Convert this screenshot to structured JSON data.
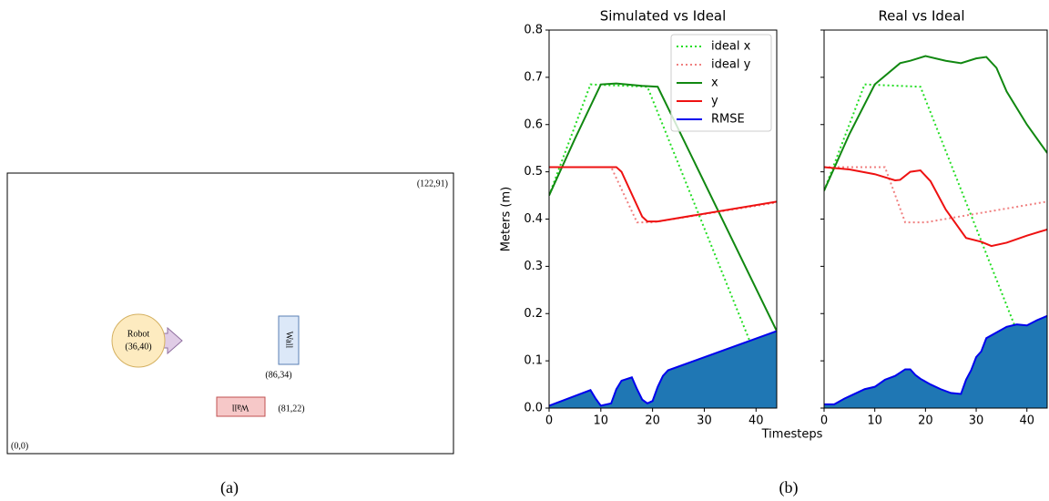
{
  "diagram": {
    "corner_top_right": "(122,91)",
    "corner_bottom_left": "(0,0)",
    "robot": {
      "label": "Robot",
      "position": "(36,40)"
    },
    "wall_vertical": {
      "label": "Wall",
      "position": "(86,34)"
    },
    "wall_horizontal": {
      "label": "Wall",
      "position": "(81,22)"
    },
    "caption": "(a)"
  },
  "caption_b": "(b)",
  "chart_data": [
    {
      "type": "line",
      "title": "Simulated vs Ideal",
      "ylabel": "Meters (m)",
      "xlabel": "Timesteps",
      "xlim": [
        0,
        44
      ],
      "xticks": [
        0,
        10,
        20,
        30,
        40
      ],
      "ylim": [
        0,
        0.8
      ],
      "yticks": [
        {
          "value": 0,
          "label": "0.0"
        },
        0.1,
        0.2,
        0.3,
        0.4,
        0.5,
        0.6,
        0.7,
        0.8
      ],
      "legend": "upper right",
      "series": [
        {
          "name": "ideal x",
          "color": "#22dd22",
          "style": "dotted",
          "x": [
            0,
            8,
            19,
            44
          ],
          "values": [
            0.45,
            0.685,
            0.68,
            0.0
          ]
        },
        {
          "name": "ideal y",
          "color": "#f08080",
          "style": "dotted",
          "x": [
            0,
            12,
            17,
            20,
            44
          ],
          "values": [
            0.51,
            0.51,
            0.393,
            0.393,
            0.435
          ]
        },
        {
          "name": "x",
          "color": "#118811",
          "style": "solid",
          "x": [
            0,
            5,
            10,
            13,
            18,
            21,
            44
          ],
          "values": [
            0.45,
            0.57,
            0.685,
            0.687,
            0.682,
            0.68,
            0.163
          ]
        },
        {
          "name": "y",
          "color": "#ee1111",
          "style": "solid",
          "x": [
            0,
            13,
            14,
            18,
            19,
            21,
            44
          ],
          "values": [
            0.51,
            0.51,
            0.5,
            0.405,
            0.395,
            0.395,
            0.437
          ]
        },
        {
          "name": "RMSE",
          "color": "#0000ee",
          "fill": "#1f77b4",
          "style": "solid",
          "x": [
            0,
            8,
            9,
            10,
            12,
            13,
            14,
            16,
            17,
            18,
            19,
            20,
            21,
            22,
            23,
            44
          ],
          "values": [
            0.005,
            0.038,
            0.02,
            0.005,
            0.01,
            0.04,
            0.058,
            0.065,
            0.04,
            0.018,
            0.01,
            0.015,
            0.045,
            0.068,
            0.08,
            0.163
          ]
        }
      ]
    },
    {
      "type": "line",
      "title": "Real vs Ideal",
      "xlim": [
        0,
        44
      ],
      "xticks": [
        0,
        10,
        20,
        30,
        40
      ],
      "ylim": [
        0,
        0.8
      ],
      "yticks": [
        0,
        0.1,
        0.2,
        0.3,
        0.4,
        0.5,
        0.6,
        0.7,
        0.8
      ],
      "series": [
        {
          "color": "#22dd22",
          "style": "dotted",
          "x": [
            0,
            8,
            19,
            44
          ],
          "values": [
            0.46,
            0.685,
            0.68,
            0.0
          ]
        },
        {
          "color": "#f08080",
          "style": "dotted",
          "x": [
            0,
            12,
            16,
            20,
            44
          ],
          "values": [
            0.51,
            0.51,
            0.393,
            0.393,
            0.437
          ]
        },
        {
          "color": "#118811",
          "style": "solid",
          "x": [
            0,
            5,
            10,
            15,
            17,
            20,
            24,
            27,
            30,
            32,
            34,
            36,
            40,
            44
          ],
          "values": [
            0.46,
            0.58,
            0.685,
            0.73,
            0.735,
            0.745,
            0.735,
            0.73,
            0.74,
            0.743,
            0.72,
            0.67,
            0.6,
            0.54
          ]
        },
        {
          "color": "#ee1111",
          "style": "solid",
          "x": [
            0,
            5,
            10,
            14,
            15,
            17,
            19,
            21,
            24,
            28,
            31,
            33,
            36,
            40,
            44
          ],
          "values": [
            0.51,
            0.505,
            0.495,
            0.482,
            0.483,
            0.5,
            0.503,
            0.48,
            0.42,
            0.36,
            0.352,
            0.343,
            0.35,
            0.365,
            0.378
          ]
        },
        {
          "color": "#0000ee",
          "fill": "#1f77b4",
          "style": "solid",
          "x": [
            0,
            2,
            4,
            6,
            8,
            10,
            12,
            14,
            16,
            17,
            18,
            19,
            21,
            23,
            25,
            27,
            28,
            29,
            30,
            31,
            32,
            34,
            36,
            38,
            40,
            42,
            44
          ],
          "values": [
            0.008,
            0.008,
            0.02,
            0.03,
            0.04,
            0.045,
            0.06,
            0.068,
            0.082,
            0.082,
            0.07,
            0.062,
            0.05,
            0.04,
            0.032,
            0.03,
            0.06,
            0.08,
            0.108,
            0.12,
            0.148,
            0.16,
            0.172,
            0.177,
            0.175,
            0.186,
            0.195
          ]
        }
      ]
    }
  ]
}
